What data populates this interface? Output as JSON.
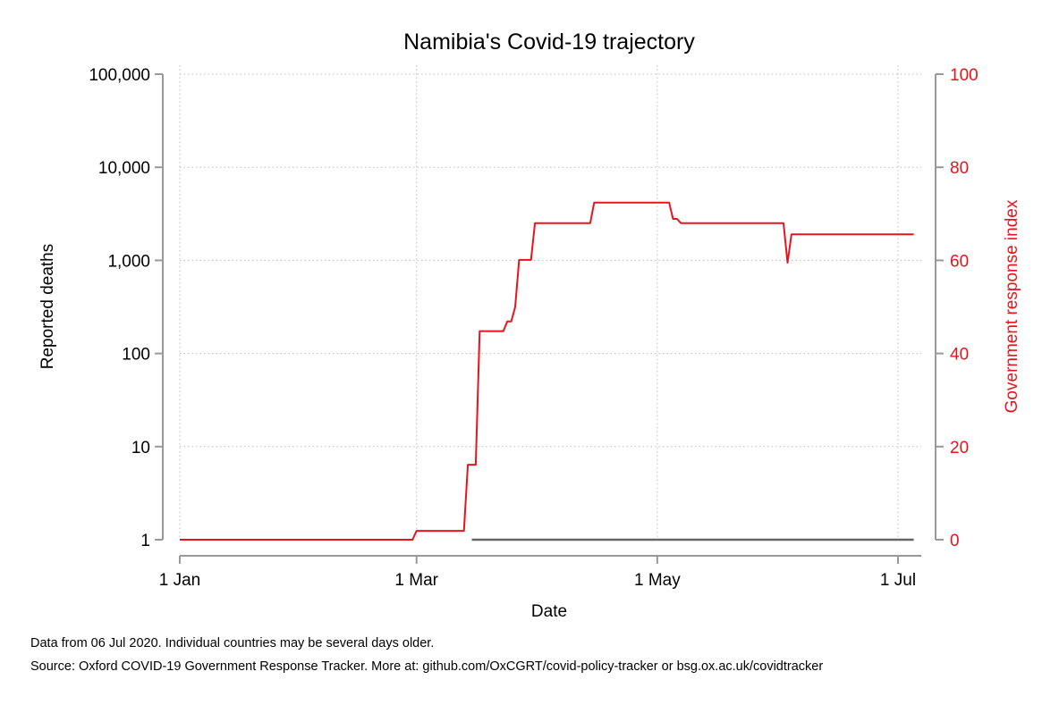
{
  "chart_data": {
    "type": "line",
    "title": "Namibia's Covid-19 trajectory",
    "xlabel": "Date",
    "ylabel_left": "Reported deaths",
    "ylabel_right": "Government response index",
    "x_ticks": [
      {
        "date": "2020-01-01",
        "label": "1 Jan"
      },
      {
        "date": "2020-03-01",
        "label": "1 Mar"
      },
      {
        "date": "2020-05-01",
        "label": "1 May"
      },
      {
        "date": "2020-07-01",
        "label": "1 Jul"
      }
    ],
    "xlim": [
      "2020-01-01",
      "2020-07-07"
    ],
    "y_left": {
      "scale": "log",
      "ylim": [
        1,
        100000
      ],
      "ticks": [
        {
          "value": 1,
          "label": "1"
        },
        {
          "value": 10,
          "label": "10"
        },
        {
          "value": 100,
          "label": "100"
        },
        {
          "value": 1000,
          "label": "1,000"
        },
        {
          "value": 10000,
          "label": "10,000"
        },
        {
          "value": 100000,
          "label": "100,000"
        }
      ]
    },
    "y_right": {
      "scale": "linear",
      "ylim": [
        0,
        100
      ],
      "ticks": [
        {
          "value": 0,
          "label": "0"
        },
        {
          "value": 20,
          "label": "20"
        },
        {
          "value": 40,
          "label": "40"
        },
        {
          "value": 60,
          "label": "60"
        },
        {
          "value": 80,
          "label": "80"
        },
        {
          "value": 100,
          "label": "100"
        }
      ]
    },
    "grid": true,
    "series": [
      {
        "axis": "right",
        "color": "#e8141c",
        "points": [
          [
            "2020-01-01",
            0
          ],
          [
            "2020-02-29",
            0
          ],
          [
            "2020-03-01",
            1.9
          ],
          [
            "2020-03-13",
            1.9
          ],
          [
            "2020-03-14",
            16.1
          ],
          [
            "2020-03-15",
            16.1
          ],
          [
            "2020-03-16",
            16.1
          ],
          [
            "2020-03-17",
            44.8
          ],
          [
            "2020-03-23",
            44.8
          ],
          [
            "2020-03-24",
            46.9
          ],
          [
            "2020-03-25",
            46.9
          ],
          [
            "2020-03-26",
            50
          ],
          [
            "2020-03-27",
            60.1
          ],
          [
            "2020-03-30",
            60.1
          ],
          [
            "2020-03-31",
            68
          ],
          [
            "2020-04-14",
            68
          ],
          [
            "2020-04-15",
            72.4
          ],
          [
            "2020-04-26",
            72.4
          ],
          [
            "2020-05-04",
            72.4
          ],
          [
            "2020-05-05",
            68.9
          ],
          [
            "2020-05-06",
            68.9
          ],
          [
            "2020-05-07",
            68
          ],
          [
            "2020-06-02",
            68
          ],
          [
            "2020-06-03",
            59.5
          ],
          [
            "2020-06-04",
            65.6
          ],
          [
            "2020-07-05",
            65.6
          ]
        ]
      },
      {
        "axis": "left",
        "color": "#666666",
        "points": [
          [
            "2020-03-15",
            1
          ],
          [
            "2020-07-05",
            1
          ]
        ]
      }
    ]
  },
  "notes": {
    "line1": "Data from 06 Jul 2020. Individual countries may be several days older.",
    "line2": "Source: Oxford COVID-19 Government Response Tracker. More at: github.com/OxCGRT/covid-policy-tracker or bsg.ox.ac.uk/covidtracker"
  }
}
